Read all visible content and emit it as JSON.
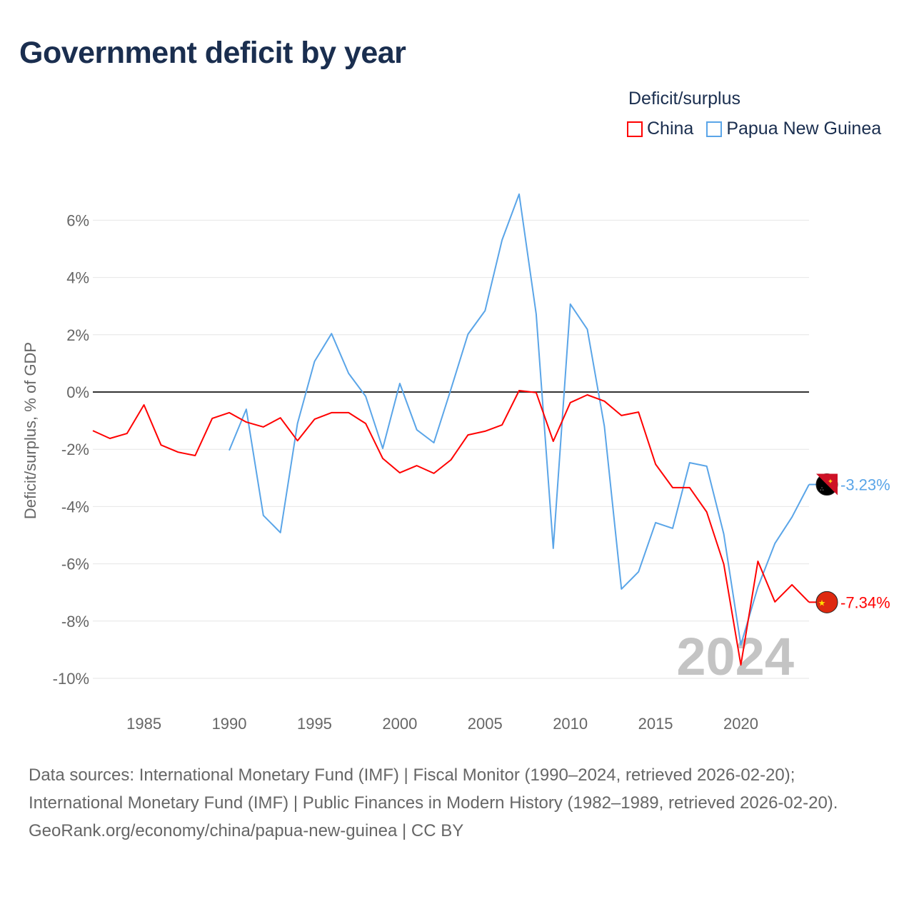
{
  "title": "Government deficit by year",
  "legend": {
    "title": "Deficit/surplus",
    "items": [
      {
        "label": "China",
        "color": "#ff0000"
      },
      {
        "label": "Papua New Guinea",
        "color": "#5aa5e8"
      }
    ]
  },
  "footer": {
    "sources": "Data sources: International Monetary Fund (IMF) | Fiscal Monitor (1990–2024, retrieved 2026-02-20); International Monetary Fund (IMF) | Public Finances in Modern History (1982–1989, retrieved 2026-02-20).",
    "credit": "GeoRank.org/economy/china/papua-new-guinea | CC BY"
  },
  "chart_data": {
    "type": "line",
    "title": "Government deficit by year",
    "xlabel": "",
    "ylabel": "Deficit/surplus, % of GDP",
    "xlim": [
      1982,
      2024
    ],
    "ylim": [
      -11,
      7
    ],
    "x_ticks": [
      1985,
      1990,
      1995,
      2000,
      2005,
      2010,
      2015,
      2020
    ],
    "y_ticks": [
      6,
      4,
      2,
      0,
      -2,
      -4,
      -6,
      -8,
      -10
    ],
    "y_tick_labels": [
      "6%",
      "4%",
      "2%",
      "0%",
      "-2%",
      "-4%",
      "-6%",
      "-8%",
      "-10%"
    ],
    "grid": true,
    "legend_position": "top-right",
    "year_watermark": "2024",
    "series": [
      {
        "name": "China",
        "color": "#ff0000",
        "end_label": "-7.34%",
        "x": [
          1982,
          1983,
          1984,
          1985,
          1986,
          1987,
          1988,
          1989,
          1990,
          1991,
          1992,
          1993,
          1994,
          1995,
          1996,
          1997,
          1998,
          1999,
          2000,
          2001,
          2002,
          2003,
          2004,
          2005,
          2006,
          2007,
          2008,
          2009,
          2010,
          2011,
          2012,
          2013,
          2014,
          2015,
          2016,
          2017,
          2018,
          2019,
          2020,
          2021,
          2022,
          2023,
          2024
        ],
        "values": [
          -1.35,
          -1.62,
          -1.45,
          -0.45,
          -1.85,
          -2.1,
          -2.22,
          -0.92,
          -0.72,
          -1.05,
          -1.22,
          -0.9,
          -1.7,
          -0.95,
          -0.72,
          -0.72,
          -1.1,
          -2.32,
          -2.82,
          -2.57,
          -2.84,
          -2.37,
          -1.5,
          -1.37,
          -1.15,
          0.05,
          -0.02,
          -1.72,
          -0.37,
          -0.1,
          -0.32,
          -0.82,
          -0.7,
          -2.52,
          -3.34,
          -3.34,
          -4.19,
          -6.01,
          -9.53,
          -5.91,
          -7.33,
          -6.73,
          -7.34
        ]
      },
      {
        "name": "Papua New Guinea",
        "color": "#5aa5e8",
        "end_label": "-3.23%",
        "x": [
          1990,
          1991,
          1992,
          1993,
          1994,
          1995,
          1996,
          1997,
          1998,
          1999,
          2000,
          2001,
          2002,
          2003,
          2004,
          2005,
          2006,
          2007,
          2008,
          2009,
          2010,
          2011,
          2012,
          2013,
          2014,
          2015,
          2016,
          2017,
          2018,
          2019,
          2020,
          2021,
          2022,
          2023,
          2024
        ],
        "values": [
          -2.04,
          -0.6,
          -4.31,
          -4.91,
          -1.1,
          1.07,
          2.04,
          0.65,
          -0.15,
          -1.97,
          0.3,
          -1.32,
          -1.77,
          0.1,
          2.02,
          2.84,
          5.31,
          6.91,
          2.72,
          -5.46,
          3.07,
          2.19,
          -1.2,
          -6.88,
          -6.28,
          -4.56,
          -4.76,
          -2.47,
          -2.59,
          -4.96,
          -8.83,
          -6.81,
          -5.29,
          -4.37,
          -3.23
        ]
      }
    ]
  }
}
